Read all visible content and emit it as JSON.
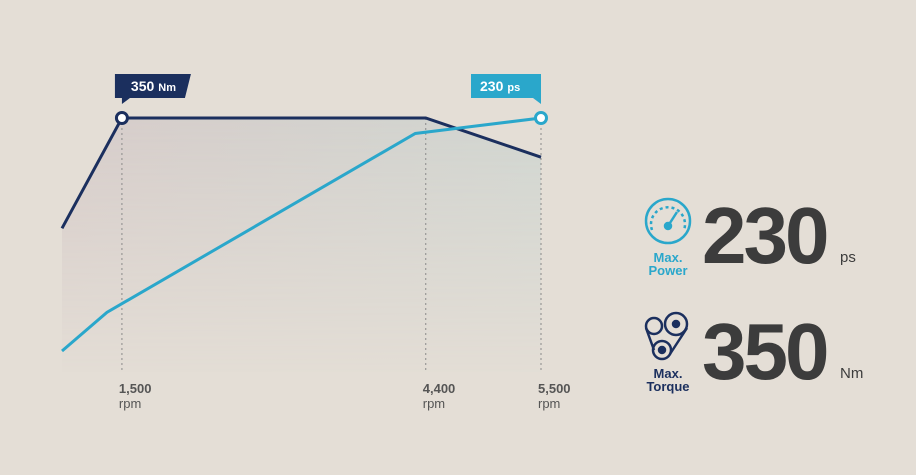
{
  "chart_data": {
    "type": "line",
    "xlim": [
      928,
      5500
    ],
    "xticks": [
      {
        "value": 1500,
        "label": "1,500"
      },
      {
        "value": 4400,
        "label": "4,400"
      },
      {
        "value": 5500,
        "label": "5,500"
      }
    ],
    "x_unit": "rpm",
    "ylim": [
      0,
      350
    ],
    "y2lim": [
      0,
      230
    ],
    "series": [
      {
        "color": "#1b2f5e",
        "x": [
          928,
          1500,
          4400,
          5500
        ],
        "values": [
          198,
          350,
          350,
          296
        ],
        "peak_unit": "Nm",
        "area": true
      },
      {
        "color": "#2aa7cb",
        "axis": "y2",
        "x": [
          928,
          1357,
          4300,
          5500
        ],
        "values": [
          19,
          54,
          216,
          230
        ],
        "peak_unit": "ps"
      }
    ]
  },
  "stats": [
    {
      "label": [
        "Max.",
        "Power"
      ],
      "value": 230,
      "unit": "ps",
      "color": "#2aa7cb"
    },
    {
      "label": [
        "Max.",
        "Torque"
      ],
      "value": 350,
      "unit": "Nm",
      "color": "#1b2f5e"
    }
  ]
}
